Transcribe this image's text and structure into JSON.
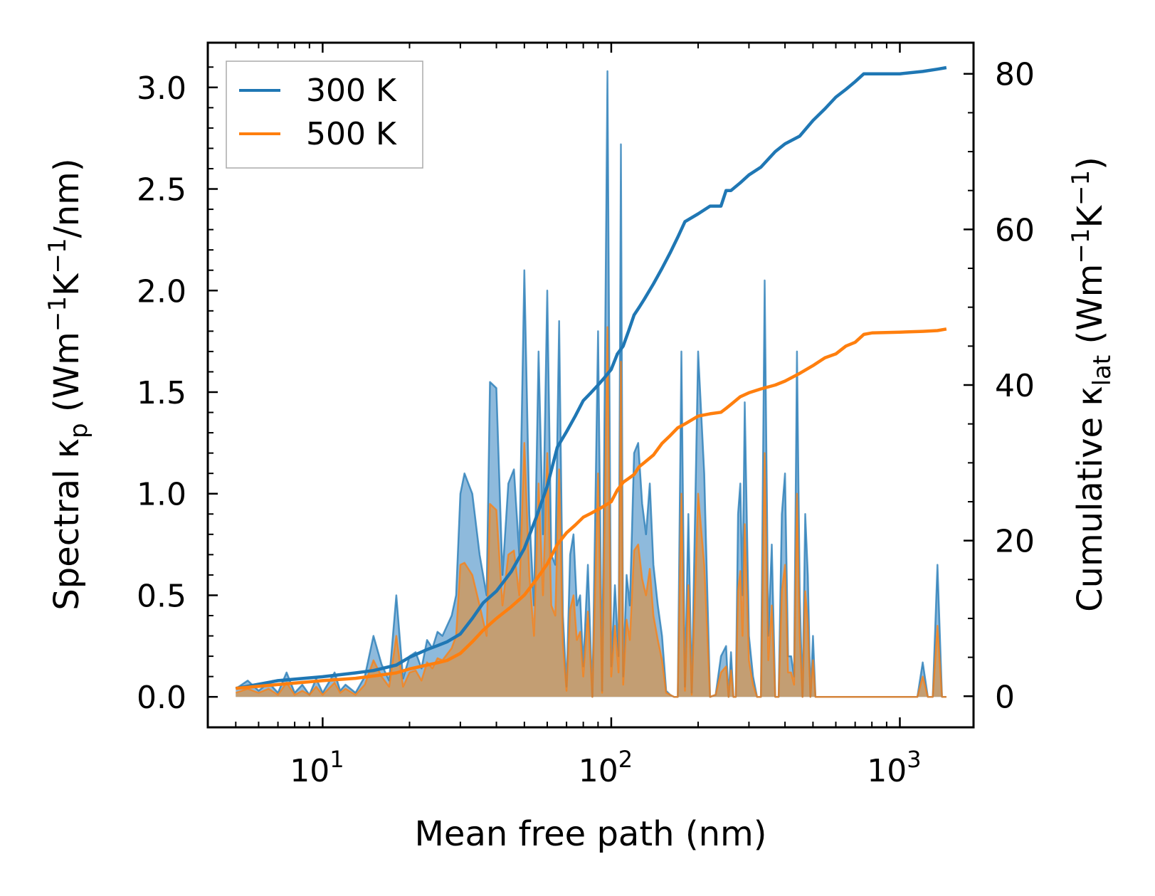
{
  "chart_data": {
    "type": "line",
    "title": "",
    "xlabel": "Mean free path (nm)",
    "xscale": "log",
    "xlim": [
      4,
      1800
    ],
    "x_ticks": [
      {
        "value": 10,
        "base": "10",
        "exp": "1"
      },
      {
        "value": 100,
        "base": "10",
        "exp": "2"
      },
      {
        "value": 1000,
        "base": "10",
        "exp": "3"
      }
    ],
    "ylabel_left": {
      "prefix": "Spectral κ",
      "sub": "p",
      "units_open": " (Wm",
      "sup1": "−1",
      "units_mid": "K",
      "sup2": "−1",
      "units_close": "/nm)"
    },
    "ylim_left": [
      -0.15,
      3.22
    ],
    "y_ticks_left": [
      {
        "value": 0.0,
        "label": "0.0"
      },
      {
        "value": 0.5,
        "label": "0.5"
      },
      {
        "value": 1.0,
        "label": "1.0"
      },
      {
        "value": 1.5,
        "label": "1.5"
      },
      {
        "value": 2.0,
        "label": "2.0"
      },
      {
        "value": 2.5,
        "label": "2.5"
      },
      {
        "value": 3.0,
        "label": "3.0"
      }
    ],
    "ylabel_right": {
      "prefix": "Cumulative κ",
      "sub": "lat",
      "units_open": " (Wm",
      "sup1": "−1",
      "units_mid": "K",
      "sup2": "−1",
      "units_close": ")"
    },
    "ylim_right": [
      -4,
      84
    ],
    "y_ticks_right": [
      {
        "value": 0,
        "label": "0"
      },
      {
        "value": 20,
        "label": "20"
      },
      {
        "value": 40,
        "label": "40"
      },
      {
        "value": 60,
        "label": "60"
      },
      {
        "value": 80,
        "label": "80"
      }
    ],
    "legend": {
      "placement": "top-left",
      "entries": [
        "300 K",
        "500 K"
      ]
    },
    "colors": {
      "s300": "#1f77b4",
      "s500": "#ff7f0e",
      "fill300": "#7aaed6",
      "fill500": "#c69c6d"
    },
    "series": [
      {
        "name": "300 K",
        "spectral_x": [
          5,
          5.5,
          6,
          6.5,
          7,
          7.5,
          8,
          8.5,
          9,
          9.5,
          10,
          11,
          11.5,
          12,
          13,
          14,
          15,
          16,
          17,
          18,
          19,
          20,
          21,
          22,
          23,
          24,
          25,
          26,
          28,
          29,
          30,
          31,
          33,
          35,
          37,
          38,
          40,
          42,
          44,
          46,
          48,
          50,
          52,
          54,
          56,
          58,
          60,
          62,
          64,
          66,
          68,
          70,
          72,
          74,
          76,
          78,
          80,
          83,
          86,
          90,
          93,
          97,
          100,
          103,
          106,
          108,
          110,
          113,
          116,
          120,
          124,
          128,
          132,
          136,
          140,
          145,
          150,
          155,
          160,
          165,
          170,
          175,
          180,
          185,
          190,
          200,
          210,
          220,
          230,
          240,
          250,
          255,
          260,
          265,
          270,
          275,
          280,
          285,
          290,
          300,
          310,
          320,
          330,
          340,
          350,
          360,
          370,
          380,
          390,
          400,
          410,
          420,
          430,
          440,
          450,
          460,
          470,
          480,
          490,
          500,
          510,
          520,
          530,
          540,
          550,
          560,
          570,
          580,
          590,
          600,
          610,
          620,
          630,
          640,
          650,
          660,
          670,
          680,
          690,
          700,
          710,
          720,
          730,
          740,
          750,
          760,
          770,
          780,
          800,
          850,
          900,
          1000,
          1100,
          1150,
          1200,
          1250,
          1300,
          1350,
          1400,
          1450
        ],
        "spectral_y": [
          0.04,
          0.08,
          0.03,
          0.07,
          0.02,
          0.12,
          0.02,
          0.06,
          0.01,
          0.09,
          0.02,
          0.12,
          0.03,
          0.06,
          0.02,
          0.1,
          0.3,
          0.16,
          0.08,
          0.5,
          0.09,
          0.2,
          0.22,
          0.14,
          0.28,
          0.24,
          0.32,
          0.3,
          0.4,
          0.5,
          1.0,
          1.1,
          1.0,
          0.7,
          0.5,
          1.55,
          1.52,
          0.6,
          1.05,
          1.12,
          0.7,
          2.1,
          0.9,
          0.45,
          1.7,
          0.8,
          2.0,
          0.7,
          0.65,
          1.85,
          0.4,
          0.05,
          0.7,
          0.8,
          0.45,
          0.5,
          0.15,
          0.65,
          0.0,
          1.8,
          0.03,
          3.08,
          0.15,
          0.55,
          0.2,
          2.72,
          0.1,
          0.6,
          0.45,
          1.2,
          1.25,
          0.95,
          0.8,
          1.05,
          0.65,
          0.45,
          0.3,
          0.03,
          0.01,
          0.0,
          0.0,
          1.7,
          0.05,
          0.9,
          0.02,
          1.7,
          1.1,
          0.0,
          0.01,
          0.2,
          0.25,
          0.0,
          0.22,
          0.0,
          0.0,
          0.9,
          1.05,
          0.5,
          1.45,
          0.3,
          0.1,
          0.0,
          0.0,
          2.05,
          0.3,
          0.75,
          0.0,
          0.0,
          0.9,
          1.1,
          0.2,
          0.2,
          0.1,
          1.7,
          0.5,
          0.0,
          0.9,
          0.6,
          0.0,
          0.3,
          0.0,
          0.0,
          0.0,
          0.0,
          0.0,
          0.0,
          0.0,
          0.0,
          0.0,
          0.0,
          0.0,
          0.0,
          0.0,
          0.0,
          0.0,
          0.0,
          0.0,
          0.0,
          0.0,
          0.0,
          0.0,
          0.0,
          0.0,
          0.0,
          0.0,
          0.0,
          0.0,
          0.0,
          0.0,
          0.0,
          0.0,
          0.0,
          0.0,
          0.0,
          0.17,
          0.0,
          0.0,
          0.65,
          0.0,
          0.0
        ],
        "cumulative_x": [
          5,
          7,
          10,
          13,
          15,
          18,
          20,
          23,
          25,
          27,
          30,
          33,
          36,
          40,
          45,
          50,
          55,
          60,
          65,
          70,
          75,
          80,
          85,
          90,
          95,
          100,
          105,
          110,
          115,
          120,
          125,
          130,
          140,
          150,
          160,
          170,
          180,
          200,
          220,
          240,
          250,
          260,
          280,
          300,
          330,
          370,
          400,
          450,
          500,
          550,
          600,
          650,
          700,
          750,
          800,
          1000,
          1200,
          1350,
          1450
        ],
        "cumulative_y": [
          1,
          2,
          2.5,
          3,
          3.3,
          4,
          5,
          6,
          6.5,
          7,
          8,
          10,
          12,
          13.5,
          16,
          19,
          23,
          27,
          32,
          34,
          36,
          38,
          39,
          40,
          41,
          42,
          44,
          45,
          47,
          49,
          50,
          51,
          53,
          55,
          57,
          59,
          61,
          62,
          63,
          63,
          65,
          65,
          66,
          67,
          68,
          70,
          71,
          72,
          74,
          75.5,
          77,
          78,
          79,
          80,
          80,
          80,
          80.3,
          80.6,
          80.8
        ]
      },
      {
        "name": "500 K",
        "spectral_x": [
          5,
          5.5,
          6,
          6.5,
          7,
          7.5,
          8,
          8.5,
          9,
          9.5,
          10,
          11,
          11.5,
          12,
          13,
          14,
          15,
          16,
          17,
          18,
          19,
          20,
          21,
          22,
          23,
          24,
          25,
          26,
          28,
          29,
          30,
          31,
          33,
          35,
          37,
          38,
          40,
          42,
          44,
          46,
          48,
          50,
          52,
          54,
          56,
          58,
          60,
          62,
          64,
          66,
          68,
          70,
          72,
          74,
          76,
          78,
          80,
          83,
          86,
          90,
          93,
          97,
          100,
          103,
          106,
          108,
          110,
          113,
          116,
          120,
          124,
          128,
          132,
          136,
          140,
          145,
          150,
          155,
          160,
          165,
          170,
          175,
          180,
          185,
          190,
          200,
          210,
          220,
          230,
          240,
          250,
          255,
          260,
          265,
          270,
          275,
          280,
          285,
          290,
          300,
          310,
          320,
          330,
          340,
          350,
          360,
          370,
          380,
          390,
          400,
          410,
          420,
          430,
          440,
          450,
          460,
          470,
          480,
          490,
          500,
          510,
          520,
          530,
          540,
          550,
          560,
          570,
          580,
          590,
          600,
          610,
          620,
          630,
          640,
          650,
          660,
          670,
          680,
          690,
          700,
          710,
          720,
          730,
          740,
          750,
          760,
          770,
          780,
          800,
          850,
          900,
          1000,
          1100,
          1150,
          1200,
          1250,
          1300,
          1350,
          1400,
          1450
        ],
        "spectral_y": [
          0.02,
          0.04,
          0.02,
          0.04,
          0.01,
          0.07,
          0.01,
          0.03,
          0.01,
          0.05,
          0.01,
          0.07,
          0.02,
          0.04,
          0.01,
          0.06,
          0.18,
          0.1,
          0.05,
          0.3,
          0.05,
          0.12,
          0.13,
          0.08,
          0.17,
          0.14,
          0.19,
          0.18,
          0.24,
          0.3,
          0.65,
          0.66,
          0.6,
          0.45,
          0.3,
          0.95,
          0.92,
          0.45,
          0.7,
          0.72,
          0.5,
          1.25,
          0.6,
          0.3,
          1.05,
          0.5,
          1.2,
          0.45,
          0.4,
          1.12,
          0.26,
          0.03,
          0.43,
          0.5,
          0.28,
          0.32,
          0.1,
          0.42,
          0.0,
          1.1,
          0.02,
          1.82,
          0.1,
          0.35,
          0.12,
          1.65,
          0.06,
          0.38,
          0.28,
          0.72,
          0.75,
          0.58,
          0.5,
          0.63,
          0.4,
          0.28,
          0.18,
          0.02,
          0.01,
          0.0,
          0.0,
          1.0,
          0.03,
          0.55,
          0.01,
          1.0,
          0.65,
          0.0,
          0.01,
          0.12,
          0.15,
          0.0,
          0.13,
          0.0,
          0.0,
          0.52,
          0.62,
          0.3,
          0.85,
          0.18,
          0.06,
          0.0,
          0.0,
          1.2,
          0.18,
          0.45,
          0.0,
          0.0,
          0.52,
          0.65,
          0.12,
          0.12,
          0.06,
          1.0,
          0.3,
          0.0,
          0.52,
          0.36,
          0.0,
          0.18,
          0.0,
          0.0,
          0.0,
          0.0,
          0.0,
          0.0,
          0.0,
          0.0,
          0.0,
          0.0,
          0.0,
          0.0,
          0.0,
          0.0,
          0.0,
          0.0,
          0.0,
          0.0,
          0.0,
          0.0,
          0.0,
          0.0,
          0.0,
          0.0,
          0.0,
          0.0,
          0.0,
          0.0,
          0.0,
          0.0,
          0.0,
          0.0,
          0.0,
          0.0,
          0.1,
          0.0,
          0.0,
          0.35,
          0.0,
          0.0
        ],
        "cumulative_x": [
          5,
          7,
          10,
          13,
          15,
          18,
          20,
          23,
          25,
          27,
          30,
          33,
          36,
          40,
          45,
          50,
          55,
          60,
          65,
          70,
          75,
          80,
          85,
          90,
          95,
          100,
          105,
          110,
          115,
          120,
          125,
          130,
          140,
          150,
          160,
          170,
          180,
          200,
          220,
          240,
          250,
          260,
          280,
          300,
          330,
          370,
          400,
          450,
          500,
          550,
          600,
          650,
          700,
          750,
          800,
          1000,
          1200,
          1350,
          1450
        ],
        "cumulative_y": [
          1,
          1.5,
          2,
          2.3,
          2.6,
          3,
          3.5,
          4,
          4.3,
          4.6,
          5.5,
          7,
          8.5,
          10,
          11.5,
          13,
          15,
          17,
          19.5,
          21,
          22,
          23,
          23.5,
          24,
          24.5,
          25,
          26.5,
          27.5,
          28,
          28.5,
          29.5,
          30,
          31,
          32.5,
          33.5,
          34.5,
          35,
          36,
          36.3,
          36.5,
          37,
          37.5,
          38.5,
          39,
          39.5,
          40,
          40.5,
          41.5,
          42.5,
          43.5,
          44,
          45,
          45.5,
          46.5,
          46.7,
          46.8,
          46.9,
          47.0,
          47.2
        ]
      }
    ]
  }
}
